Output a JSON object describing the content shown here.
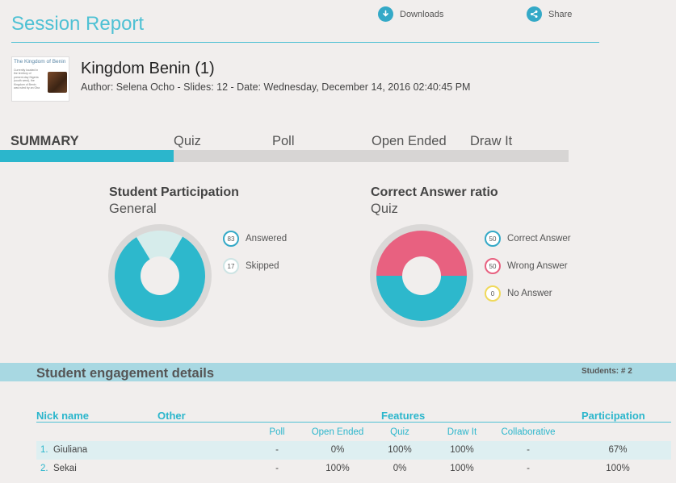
{
  "header": {
    "title": "Session Report",
    "downloads_label": "Downloads",
    "share_label": "Share"
  },
  "presentation": {
    "thumb_title": "The Kingdom of Benin",
    "thumb_text": "Currently located in the territory of present-day Nigeria (south west), the Kingdom of Benin was ruled by an Oba",
    "title": "Kingdom Benin (1)",
    "meta": "Author: Selena Ocho - Slides: 12 - Date: Wednesday, December 14, 2016 02:40:45 PM"
  },
  "tabs": [
    "SUMMARY",
    "Quiz",
    "Poll",
    "Open Ended",
    "Draw It"
  ],
  "active_tab_index": 0,
  "participation_chart": {
    "title": "Student Participation",
    "subtitle": "General",
    "legend": [
      {
        "label": "Answered",
        "badge": "83",
        "color": "#2db8cc"
      },
      {
        "label": "Skipped",
        "badge": "17",
        "color": "#d6eceb"
      }
    ]
  },
  "answer_chart": {
    "title": "Correct Answer ratio",
    "subtitle": "Quiz",
    "legend": [
      {
        "label": "Correct Answer",
        "badge": "50",
        "color": "#2db8cc"
      },
      {
        "label": "Wrong Answer",
        "badge": "50",
        "color": "#e86180"
      },
      {
        "label": "No Answer",
        "badge": "0",
        "color": "#f0d95a"
      }
    ]
  },
  "chart_data": [
    {
      "type": "pie",
      "title": "Student Participation",
      "subtitle": "General",
      "categories": [
        "Answered",
        "Skipped"
      ],
      "values": [
        83,
        17
      ]
    },
    {
      "type": "pie",
      "title": "Correct Answer ratio",
      "subtitle": "Quiz",
      "categories": [
        "Correct Answer",
        "Wrong Answer",
        "No Answer"
      ],
      "values": [
        50,
        50,
        0
      ]
    }
  ],
  "engagement": {
    "title": "Student engagement details",
    "students_count": "Students: # 2",
    "headers": {
      "nick": "Nick name",
      "other": "Other",
      "features": "Features",
      "participation": "Participation"
    },
    "subheaders": [
      "Poll",
      "Open Ended",
      "Quiz",
      "Draw It",
      "Collaborative"
    ],
    "rows": [
      {
        "num": "1.",
        "name": "Giuliana",
        "poll": "-",
        "open_ended": "0%",
        "quiz": "100%",
        "draw_it": "100%",
        "collaborative": "-",
        "participation": "67%"
      },
      {
        "num": "2.",
        "name": "Sekai",
        "poll": "-",
        "open_ended": "100%",
        "quiz": "0%",
        "draw_it": "100%",
        "collaborative": "-",
        "participation": "100%"
      }
    ]
  }
}
